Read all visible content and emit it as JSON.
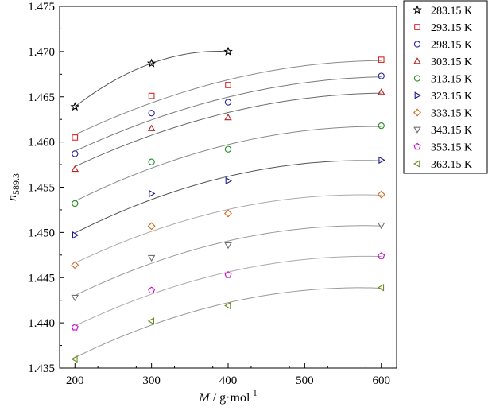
{
  "chart_data": {
    "type": "scatter",
    "title": "",
    "xlabel": {
      "italic": "M",
      "rest": " / g·mol",
      "sup": "-1"
    },
    "ylabel": {
      "italic": "n",
      "sub": "589.3"
    },
    "xlim": [
      180,
      620
    ],
    "ylim": [
      1.435,
      1.475
    ],
    "xticks": [
      200,
      300,
      400,
      500,
      600
    ],
    "yticks": [
      1.435,
      1.44,
      1.445,
      1.45,
      1.455,
      1.46,
      1.465,
      1.47,
      1.475
    ],
    "ytick_labels": [
      "1.435",
      "1.440",
      "1.445",
      "1.450",
      "1.455",
      "1.460",
      "1.465",
      "1.470",
      "1.475"
    ],
    "grid": false,
    "legend_position": "right",
    "series": [
      {
        "name": "283.15 K",
        "marker": "star",
        "color": "#000000",
        "x": [
          200,
          300,
          400
        ],
        "y": [
          1.4639,
          1.4687,
          1.47
        ]
      },
      {
        "name": "293.15 K",
        "marker": "square",
        "color": "#d62728",
        "x": [
          200,
          300,
          400,
          600
        ],
        "y": [
          1.4605,
          1.4651,
          1.4663,
          1.4691
        ]
      },
      {
        "name": "298.15 K",
        "marker": "circle",
        "color": "#1f1fa0",
        "x": [
          200,
          300,
          400,
          600
        ],
        "y": [
          1.4587,
          1.4632,
          1.4644,
          1.4673
        ]
      },
      {
        "name": "303.15 K",
        "marker": "triangle-up",
        "color": "#b22222",
        "x": [
          200,
          300,
          400,
          600
        ],
        "y": [
          1.457,
          1.4615,
          1.4627,
          1.4655
        ]
      },
      {
        "name": "313.15 K",
        "marker": "circle",
        "color": "#228b22",
        "x": [
          200,
          300,
          400,
          600
        ],
        "y": [
          1.4532,
          1.4578,
          1.4592,
          1.4618
        ]
      },
      {
        "name": "323.15 K",
        "marker": "triangle-right",
        "color": "#1a1a8c",
        "x": [
          200,
          300,
          400,
          600
        ],
        "y": [
          1.4497,
          1.4543,
          1.4557,
          1.458
        ]
      },
      {
        "name": "333.15 K",
        "marker": "diamond",
        "color": "#d2691e",
        "x": [
          200,
          300,
          400,
          600
        ],
        "y": [
          1.4464,
          1.4507,
          1.4521,
          1.4542
        ]
      },
      {
        "name": "343.15 K",
        "marker": "triangle-down",
        "color": "#707070",
        "x": [
          200,
          300,
          400,
          600
        ],
        "y": [
          1.4428,
          1.4472,
          1.4486,
          1.4508
        ]
      },
      {
        "name": "353.15 K",
        "marker": "pentagon",
        "color": "#cc00cc",
        "x": [
          200,
          300,
          400,
          600
        ],
        "y": [
          1.4395,
          1.4436,
          1.4453,
          1.4474
        ]
      },
      {
        "name": "363.15 K",
        "marker": "triangle-left",
        "color": "#6b8e23",
        "x": [
          200,
          300,
          400,
          600
        ],
        "y": [
          1.436,
          1.4402,
          1.4419,
          1.4439
        ]
      }
    ]
  }
}
